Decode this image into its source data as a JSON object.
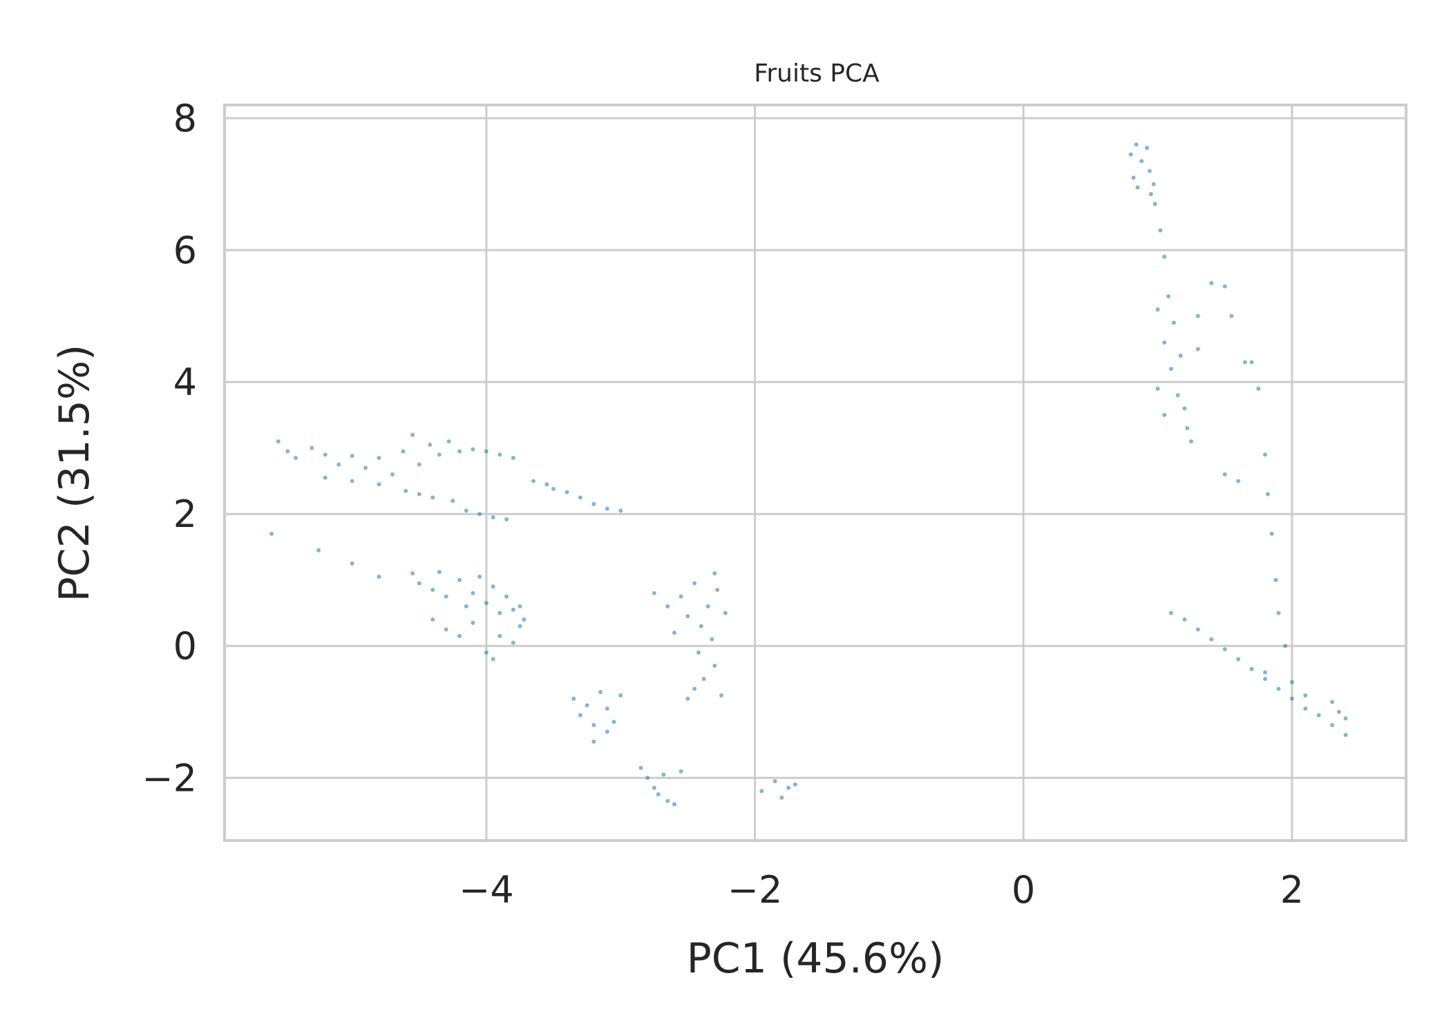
{
  "chart_data": {
    "type": "scatter",
    "title": "Fruits PCA",
    "xlabel": "PC1 (45.6%)",
    "ylabel": "PC2 (31.5%)",
    "xlim": [
      -5.95,
      2.85
    ],
    "ylim": [
      -2.95,
      8.2
    ],
    "xticks": [
      -4,
      -2,
      0,
      2
    ],
    "xtick_labels": [
      "−4",
      "−2",
      "0",
      "2"
    ],
    "yticks": [
      -2,
      0,
      2,
      4,
      6,
      8
    ],
    "ytick_labels": [
      "−2",
      "0",
      "2",
      "4",
      "6",
      "8"
    ],
    "grid": true,
    "legend": "none",
    "point_color": "#1f77b4",
    "series": [
      {
        "points": [
          [
            -5.55,
            3.1
          ],
          [
            -5.48,
            2.95
          ],
          [
            -5.42,
            2.85
          ],
          [
            -5.3,
            3.0
          ],
          [
            -5.2,
            2.9
          ],
          [
            -5.1,
            2.75
          ],
          [
            -5.0,
            2.88
          ],
          [
            -4.9,
            2.7
          ],
          [
            -4.8,
            2.85
          ],
          [
            -4.7,
            2.6
          ],
          [
            -4.62,
            2.95
          ],
          [
            -4.55,
            3.2
          ],
          [
            -4.5,
            2.75
          ],
          [
            -4.42,
            3.05
          ],
          [
            -4.35,
            2.9
          ],
          [
            -4.28,
            3.1
          ],
          [
            -4.2,
            2.95
          ],
          [
            -4.1,
            2.98
          ],
          [
            -4.0,
            2.95
          ],
          [
            -3.9,
            2.9
          ],
          [
            -3.8,
            2.85
          ],
          [
            -5.2,
            2.55
          ],
          [
            -5.0,
            2.5
          ],
          [
            -4.8,
            2.45
          ],
          [
            -4.6,
            2.35
          ],
          [
            -4.5,
            2.3
          ],
          [
            -4.4,
            2.25
          ],
          [
            -4.25,
            2.2
          ],
          [
            -4.15,
            2.05
          ],
          [
            -4.05,
            2.0
          ],
          [
            -3.95,
            1.95
          ],
          [
            -3.85,
            1.92
          ],
          [
            -3.65,
            2.5
          ],
          [
            -3.55,
            2.45
          ],
          [
            -3.5,
            2.38
          ],
          [
            -3.4,
            2.33
          ],
          [
            -3.3,
            2.25
          ],
          [
            -3.2,
            2.15
          ],
          [
            -3.1,
            2.08
          ],
          [
            -3.0,
            2.05
          ],
          [
            -5.6,
            1.7
          ],
          [
            -5.25,
            1.45
          ],
          [
            -5.0,
            1.25
          ],
          [
            -4.8,
            1.05
          ],
          [
            -4.55,
            1.1
          ],
          [
            -4.5,
            0.95
          ],
          [
            -4.4,
            0.85
          ],
          [
            -4.35,
            1.12
          ],
          [
            -4.3,
            0.75
          ],
          [
            -4.2,
            1.0
          ],
          [
            -4.15,
            0.6
          ],
          [
            -4.1,
            0.8
          ],
          [
            -4.05,
            1.05
          ],
          [
            -4.0,
            0.65
          ],
          [
            -3.95,
            0.9
          ],
          [
            -3.9,
            0.5
          ],
          [
            -3.85,
            0.75
          ],
          [
            -3.8,
            0.55
          ],
          [
            -3.75,
            0.6
          ],
          [
            -3.72,
            0.4
          ],
          [
            -4.4,
            0.4
          ],
          [
            -4.3,
            0.25
          ],
          [
            -4.2,
            0.15
          ],
          [
            -4.1,
            0.35
          ],
          [
            -4.0,
            -0.1
          ],
          [
            -3.95,
            -0.2
          ],
          [
            -3.9,
            0.15
          ],
          [
            -3.8,
            0.05
          ],
          [
            -3.75,
            0.3
          ],
          [
            -2.75,
            0.8
          ],
          [
            -2.65,
            0.6
          ],
          [
            -2.6,
            0.2
          ],
          [
            -2.55,
            0.75
          ],
          [
            -2.5,
            0.45
          ],
          [
            -2.45,
            0.95
          ],
          [
            -2.42,
            -0.1
          ],
          [
            -2.4,
            0.3
          ],
          [
            -2.38,
            -0.5
          ],
          [
            -2.35,
            0.6
          ],
          [
            -2.32,
            0.1
          ],
          [
            -2.3,
            -0.3
          ],
          [
            -2.28,
            0.85
          ],
          [
            -2.25,
            -0.75
          ],
          [
            -2.3,
            1.1
          ],
          [
            -2.45,
            -0.65
          ],
          [
            -2.5,
            -0.8
          ],
          [
            -2.22,
            0.5
          ],
          [
            -3.35,
            -0.8
          ],
          [
            -3.3,
            -1.05
          ],
          [
            -3.25,
            -0.9
          ],
          [
            -3.2,
            -1.2
          ],
          [
            -3.15,
            -0.7
          ],
          [
            -3.1,
            -0.95
          ],
          [
            -3.05,
            -1.15
          ],
          [
            -3.0,
            -0.75
          ],
          [
            -3.2,
            -1.45
          ],
          [
            -3.1,
            -1.3
          ],
          [
            -2.85,
            -1.85
          ],
          [
            -2.8,
            -2.0
          ],
          [
            -2.75,
            -2.15
          ],
          [
            -2.72,
            -2.25
          ],
          [
            -2.68,
            -1.95
          ],
          [
            -2.65,
            -2.35
          ],
          [
            -2.6,
            -2.4
          ],
          [
            -2.55,
            -1.9
          ],
          [
            -1.95,
            -2.2
          ],
          [
            -1.85,
            -2.05
          ],
          [
            -1.8,
            -2.3
          ],
          [
            -1.75,
            -2.15
          ],
          [
            -1.7,
            -2.1
          ],
          [
            0.8,
            7.45
          ],
          [
            0.82,
            7.1
          ],
          [
            0.84,
            7.6
          ],
          [
            0.85,
            6.95
          ],
          [
            0.88,
            7.35
          ],
          [
            0.92,
            7.55
          ],
          [
            0.94,
            7.2
          ],
          [
            0.95,
            6.85
          ],
          [
            0.97,
            7.0
          ],
          [
            0.98,
            6.7
          ],
          [
            1.02,
            6.3
          ],
          [
            1.05,
            5.9
          ],
          [
            1.0,
            5.1
          ],
          [
            1.05,
            4.6
          ],
          [
            1.08,
            5.3
          ],
          [
            1.1,
            4.2
          ],
          [
            1.12,
            4.9
          ],
          [
            1.15,
            3.8
          ],
          [
            1.17,
            4.4
          ],
          [
            1.2,
            3.6
          ],
          [
            1.22,
            3.3
          ],
          [
            1.25,
            3.1
          ],
          [
            1.0,
            3.9
          ],
          [
            1.05,
            3.5
          ],
          [
            1.3,
            4.5
          ],
          [
            1.3,
            5.0
          ],
          [
            1.4,
            5.5
          ],
          [
            1.5,
            5.45
          ],
          [
            1.55,
            5.0
          ],
          [
            1.65,
            4.3
          ],
          [
            1.7,
            4.3
          ],
          [
            1.75,
            3.9
          ],
          [
            1.8,
            2.9
          ],
          [
            1.82,
            2.3
          ],
          [
            1.85,
            1.7
          ],
          [
            1.88,
            1.0
          ],
          [
            1.9,
            0.5
          ],
          [
            1.95,
            0.0
          ],
          [
            1.6,
            2.5
          ],
          [
            1.5,
            2.6
          ],
          [
            1.1,
            0.5
          ],
          [
            1.2,
            0.4
          ],
          [
            1.3,
            0.25
          ],
          [
            1.4,
            0.1
          ],
          [
            1.5,
            -0.05
          ],
          [
            1.6,
            -0.2
          ],
          [
            1.7,
            -0.35
          ],
          [
            1.8,
            -0.5
          ],
          [
            1.9,
            -0.65
          ],
          [
            2.0,
            -0.8
          ],
          [
            2.1,
            -0.95
          ],
          [
            2.2,
            -1.05
          ],
          [
            2.3,
            -1.2
          ],
          [
            2.4,
            -1.35
          ],
          [
            2.3,
            -0.85
          ],
          [
            2.35,
            -1.0
          ],
          [
            2.4,
            -1.1
          ],
          [
            1.8,
            -0.4
          ],
          [
            2.0,
            -0.55
          ],
          [
            2.1,
            -0.75
          ]
        ]
      }
    ]
  }
}
